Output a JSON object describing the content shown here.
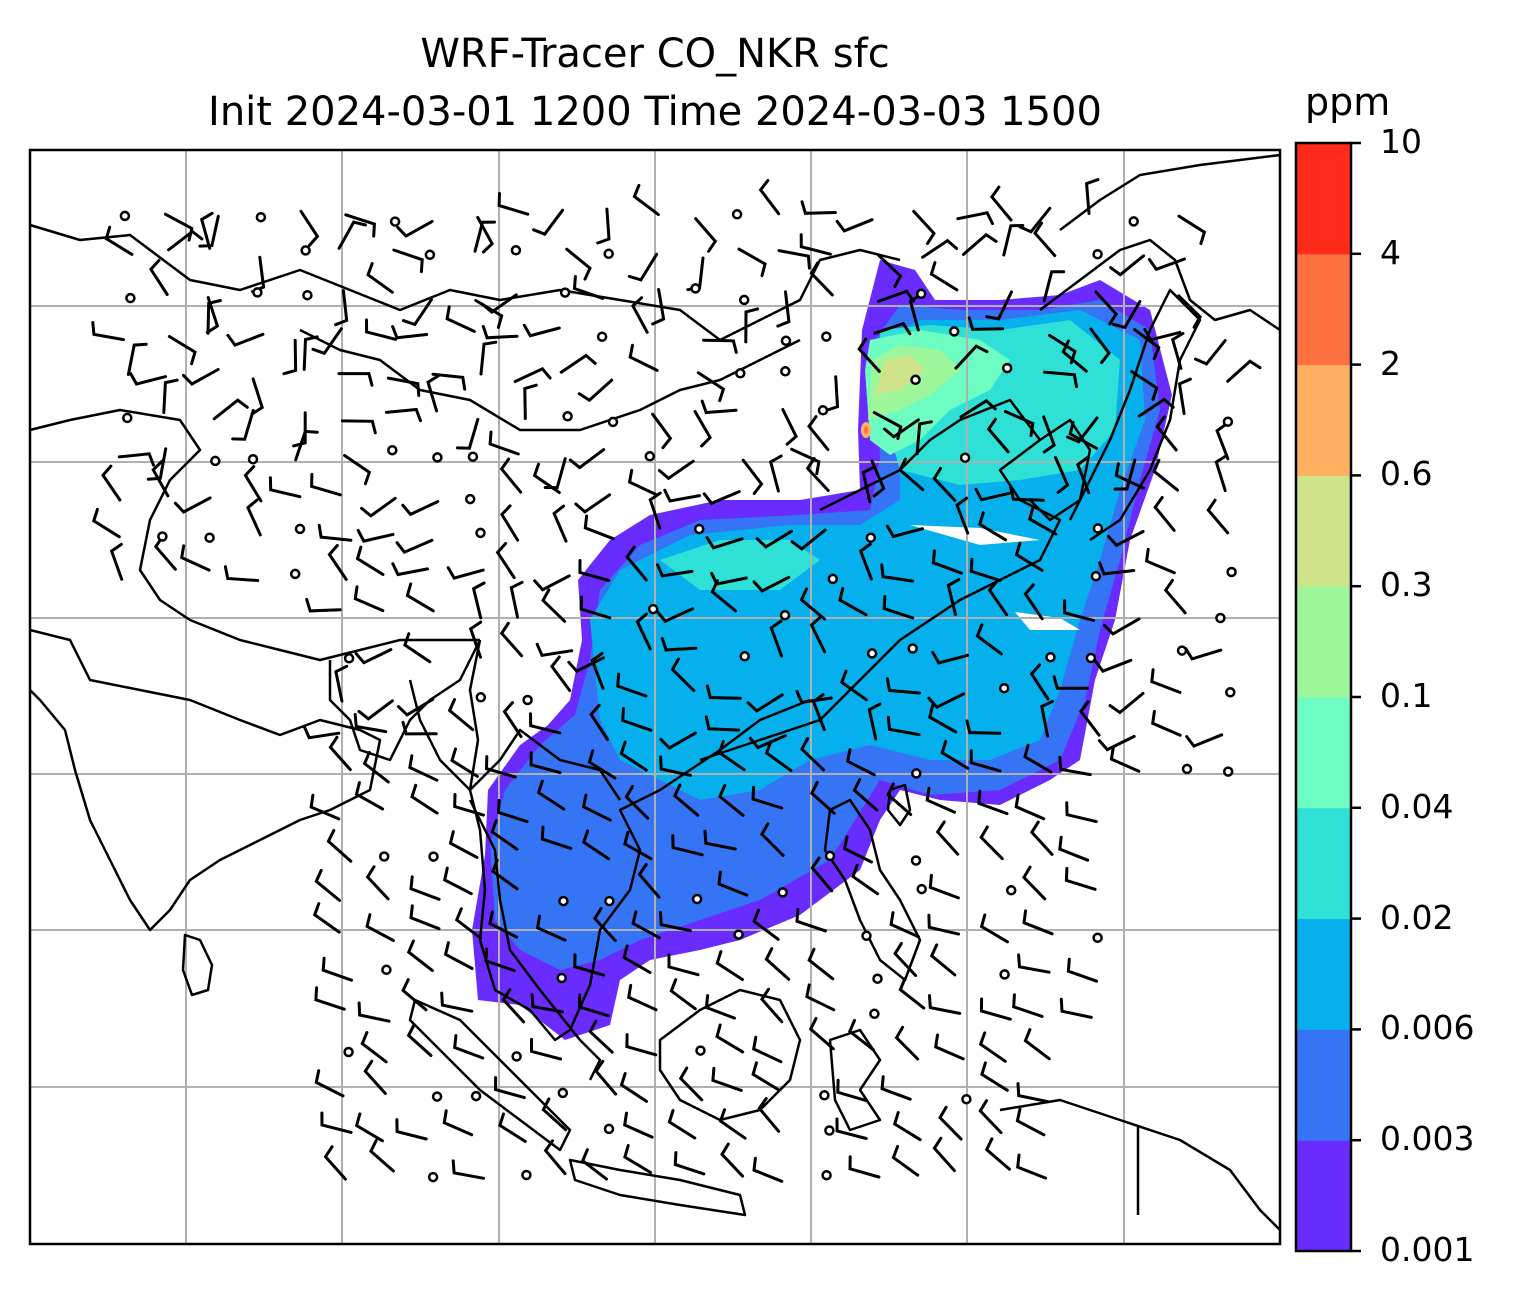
{
  "title": {
    "line1": "WRF-Tracer CO_NKR sfc",
    "line2": "Init 2024-03-01 1200 Time 2024-03-03 1500"
  },
  "colorbar": {
    "unit": "ppm",
    "levels": [
      "0.001",
      "0.003",
      "0.006",
      "0.02",
      "0.04",
      "0.1",
      "0.3",
      "0.6",
      "2",
      "4",
      "10"
    ],
    "colors": [
      "#6a2bff",
      "#3575f5",
      "#05b0ec",
      "#2fe0d6",
      "#6dfcc2",
      "#9df79a",
      "#cfe38a",
      "#ffb060",
      "#ff7040",
      "#ff2a1a"
    ]
  },
  "map": {
    "land_outline_color": "#000000",
    "gridline_color": "#b0b0b0",
    "wind_barb_color": "#000000"
  }
}
